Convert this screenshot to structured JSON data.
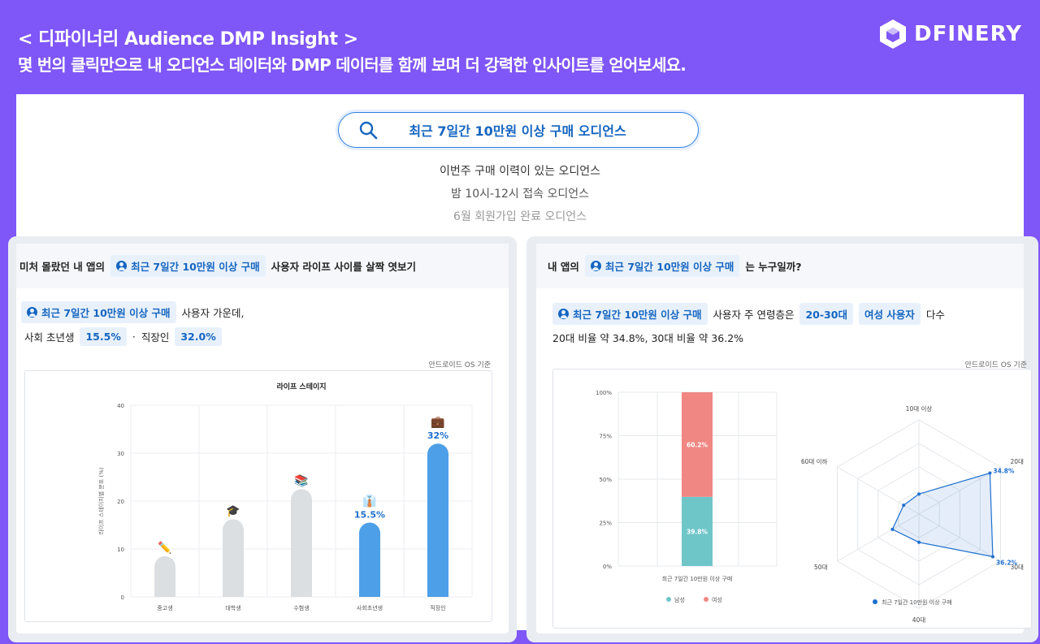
{
  "header": {
    "title": "< 디파이너리 Audience DMP Insight >",
    "subtitle": "몇 번의 클릭만으로 내 오디언스 데이터와 DMP 데이터를 함께 보며 더 강력한 인사이트를 얻어보세요.",
    "brand": "DFINERY"
  },
  "search": {
    "query": "최근 7일간 10만원 이상 구매 오디언스"
  },
  "suggestions": [
    "이번주 구매 이력이 있는 오디언스",
    "밤 10시-12시 접속 오디언스",
    "6월 회원가입 완료 오디언스"
  ],
  "left": {
    "head_pre": "미처 몰랐던 내 앱의",
    "chip": "최근 7일간 10만원 이상 구매",
    "head_post": "사용자 라이프 사이를 살짝 엿보기",
    "line1_post": "사용자 가운데,",
    "line2_a": "사회 초년생",
    "val_a": "15.5%",
    "sep": "·",
    "line2_b": "직장인",
    "val_b": "32.0%",
    "note": "안드로이드 OS 기준"
  },
  "right": {
    "head_pre": "내 앱의",
    "chip": "최근 7일간 10만원 이상 구매",
    "head_post": "는 누구일까?",
    "line1_mid": "사용자 주 연령층은",
    "age": "20-30대",
    "gender": "여성 사용자",
    "line1_post": "다수",
    "line2": "20대 비율 약 34.8%, 30대 비율 약 36.2%",
    "note": "안드로이드 OS 기준"
  },
  "chart_data": [
    {
      "type": "bar",
      "title": "라이프 스테이지",
      "ylabel": "라이프 스테이지별 분포 (%)",
      "ylim": [
        0,
        40
      ],
      "yticks": [
        0,
        10,
        20,
        30,
        40
      ],
      "categories": [
        "중고생",
        "대학생",
        "수험생",
        "사회초년생",
        "직장인"
      ],
      "values": [
        8.5,
        16.2,
        22.5,
        15.5,
        32
      ],
      "highlight": [
        false,
        false,
        false,
        true,
        true
      ],
      "labels": [
        "",
        "",
        "",
        "15.5%",
        "32%"
      ],
      "icons": [
        "✏️",
        "🎓",
        "📚",
        "👔",
        "💼"
      ],
      "colors": {
        "grey": "#dcdfe2",
        "blue": "#4d9fe8",
        "label": "#1e6fcf"
      }
    },
    {
      "type": "bar",
      "stacked": true,
      "categories": [
        "최근 7일간 10만원 이상 구매"
      ],
      "series": [
        {
          "name": "남성",
          "values": [
            39.8
          ],
          "label": "39.8%",
          "color": "#6fc6c9"
        },
        {
          "name": "여성",
          "values": [
            60.2
          ],
          "label": "60.2%",
          "color": "#f08783"
        }
      ],
      "ylim": [
        0,
        100
      ],
      "yticks": [
        "0%",
        "25%",
        "50%",
        "75%",
        "100%"
      ]
    },
    {
      "type": "radar",
      "axes": [
        "10대 이상",
        "20대",
        "30대",
        "40대",
        "50대",
        "60대 이하"
      ],
      "series": [
        {
          "name": "최근 7일간 10만원 이상 구매",
          "values": [
            8.5,
            34.8,
            36.2,
            12,
            13,
            7.5
          ],
          "color": "#1e6fcf"
        }
      ],
      "rmax": 40,
      "point_labels": [
        "",
        "34.8%",
        "36.2%",
        "",
        "",
        ""
      ]
    }
  ]
}
